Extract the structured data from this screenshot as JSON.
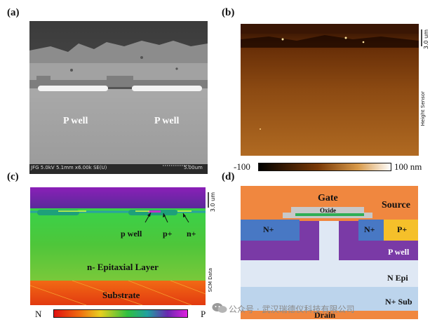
{
  "panels": {
    "a": {
      "label": "(a)",
      "well_left": "P well",
      "well_right": "P well",
      "info": "JFG 5.0kV 5.1mm x6.00k SE(U)",
      "scale": "5.00um"
    },
    "b": {
      "label": "(b)",
      "scale_length": "3.0 um",
      "channel": "Height Sensor",
      "colorbar_min": "-100",
      "colorbar_max": "100 nm"
    },
    "c": {
      "label": "(c)",
      "scale_length": "3.0 um",
      "channel": "SCM Data",
      "region_pwell": "p well",
      "region_pplus": "p+",
      "region_nplus": "n+",
      "region_epi": "n- Epitaxial Layer",
      "region_substrate": "Substrate",
      "colorbar_left": "N",
      "colorbar_right": "P"
    },
    "d": {
      "label": "(d)",
      "gate": "Gate",
      "oxide": "Oxide",
      "source": "Source",
      "nplus_left": "N+",
      "nplus_right": "N+",
      "pplus": "P+",
      "pwell": "P well",
      "nepi": "N Epi",
      "nsub": "N+ Sub",
      "drain": "Drain"
    }
  },
  "watermark": "公众号 · 武汉瑞德仪科技有限公司",
  "colors": {
    "gate_orange": "#f0873f",
    "nplus_blue": "#4878c4",
    "pplus_yellow": "#f5c02a",
    "pwell_purple": "#7a3aa6",
    "nepi_lightblue": "#dfe8f4",
    "nsub_blue": "#bcd4ec"
  }
}
